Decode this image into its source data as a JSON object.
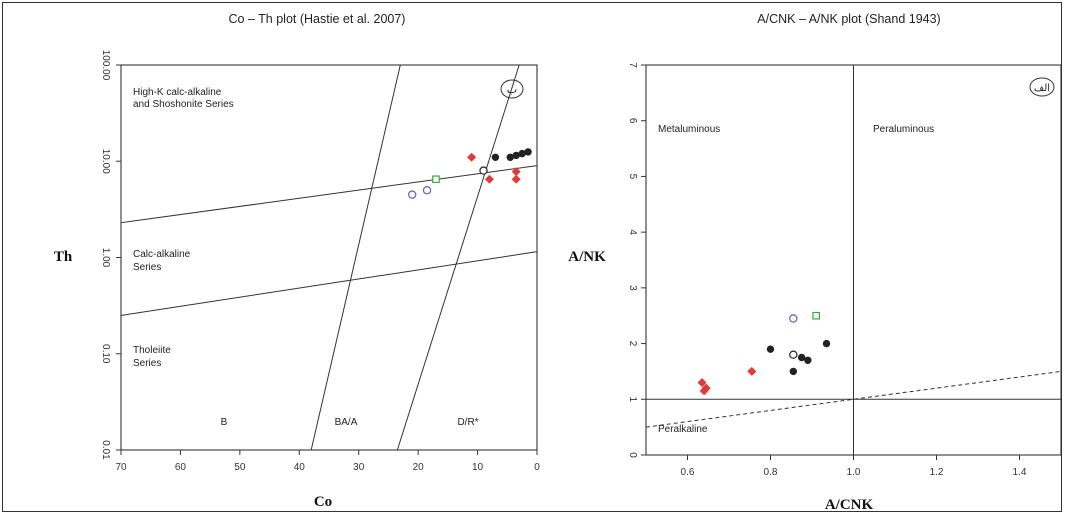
{
  "chart_data": [
    {
      "type": "scatter",
      "title": "Co – Th plot (Hastie et al. 2007)",
      "xlabel": "Co",
      "ylabel": "Th",
      "x_reversed": true,
      "xlim": [
        70,
        0
      ],
      "ylim": [
        0.01,
        100
      ],
      "y_scale": "log",
      "x_ticks": [
        "70",
        "60",
        "50",
        "40",
        "30",
        "20",
        "10",
        "0"
      ],
      "y_ticks": [
        "0.01",
        "0.10",
        "1.00",
        "10.00",
        "100.00"
      ],
      "panel_label": "ب",
      "regions": [
        {
          "name": "High-K calc-alkaline",
          "line2": "and Shoshonite Series"
        },
        {
          "name": "Calc-alkaline",
          "line2": "Series"
        },
        {
          "name": "Tholeiite",
          "line2": "Series"
        },
        {
          "name": "B",
          "line2": ""
        },
        {
          "name": "BA/A",
          "line2": ""
        },
        {
          "name": "D/R*",
          "line2": ""
        }
      ],
      "boundaries": [
        {
          "x": [
            70,
            0
          ],
          "y": [
            2.3,
            9.0
          ],
          "style": "solid"
        },
        {
          "x": [
            70,
            0
          ],
          "y": [
            0.25,
            1.15
          ],
          "style": "solid"
        },
        {
          "x": [
            38,
            23
          ],
          "y": [
            0.01,
            100
          ],
          "style": "solid"
        },
        {
          "x": [
            23.5,
            3
          ],
          "y": [
            0.01,
            100
          ],
          "style": "solid"
        }
      ],
      "series": [
        {
          "marker": "open-circle",
          "color": "#5a63b8",
          "x": [
            21,
            18.5
          ],
          "y": [
            4.5,
            5.0
          ]
        },
        {
          "marker": "open-square",
          "color": "#3aa83a",
          "x": [
            17
          ],
          "y": [
            6.5
          ]
        },
        {
          "marker": "diamond",
          "color": "#e03a3a",
          "x": [
            11,
            8,
            3.5,
            3.5
          ],
          "y": [
            11.0,
            6.5,
            6.5,
            7.8
          ]
        },
        {
          "marker": "filled-circle",
          "color": "#222222",
          "x": [
            7,
            4.5,
            3.5,
            2.5,
            1.5
          ],
          "y": [
            11.0,
            11.0,
            11.5,
            12.0,
            12.5
          ]
        },
        {
          "marker": "open-circle",
          "color": "#222222",
          "x": [
            9
          ],
          "y": [
            8.0
          ]
        }
      ]
    },
    {
      "type": "scatter",
      "title": "A/CNK – A/NK plot (Shand 1943)",
      "xlabel": "A/CNK",
      "ylabel": "A/NK",
      "xlim": [
        0.5,
        1.5
      ],
      "ylim": [
        0,
        7
      ],
      "x_ticks": [
        "0.6",
        "0.8",
        "1.0",
        "1.2",
        "1.4"
      ],
      "y_ticks": [
        "0",
        "1",
        "2",
        "3",
        "4",
        "5",
        "6",
        "7"
      ],
      "panel_label": "الف",
      "regions": [
        {
          "name": "Metaluminous"
        },
        {
          "name": "Peraluminous"
        },
        {
          "name": "Peralkaline"
        }
      ],
      "boundaries": [
        {
          "x": [
            0.5,
            1.5
          ],
          "y": [
            1,
            1
          ],
          "style": "solid"
        },
        {
          "x": [
            1.0,
            1.0
          ],
          "y": [
            0,
            7
          ],
          "style": "solid"
        },
        {
          "x": [
            0.5,
            1.5
          ],
          "y": [
            0.5,
            1.5
          ],
          "style": "dashed"
        }
      ],
      "series": [
        {
          "marker": "open-circle",
          "color": "#5a63b8",
          "x": [
            0.855
          ],
          "y": [
            2.45
          ]
        },
        {
          "marker": "open-square",
          "color": "#3aa83a",
          "x": [
            0.91
          ],
          "y": [
            2.5
          ]
        },
        {
          "marker": "diamond",
          "color": "#e03a3a",
          "x": [
            0.635,
            0.64,
            0.645,
            0.755
          ],
          "y": [
            1.3,
            1.15,
            1.2,
            1.5
          ]
        },
        {
          "marker": "filled-circle",
          "color": "#222222",
          "x": [
            0.8,
            0.855,
            0.875,
            0.89,
            0.935
          ],
          "y": [
            1.9,
            1.5,
            1.75,
            1.7,
            2.0
          ]
        },
        {
          "marker": "open-circle",
          "color": "#222222",
          "x": [
            0.855
          ],
          "y": [
            1.8
          ]
        }
      ]
    }
  ]
}
